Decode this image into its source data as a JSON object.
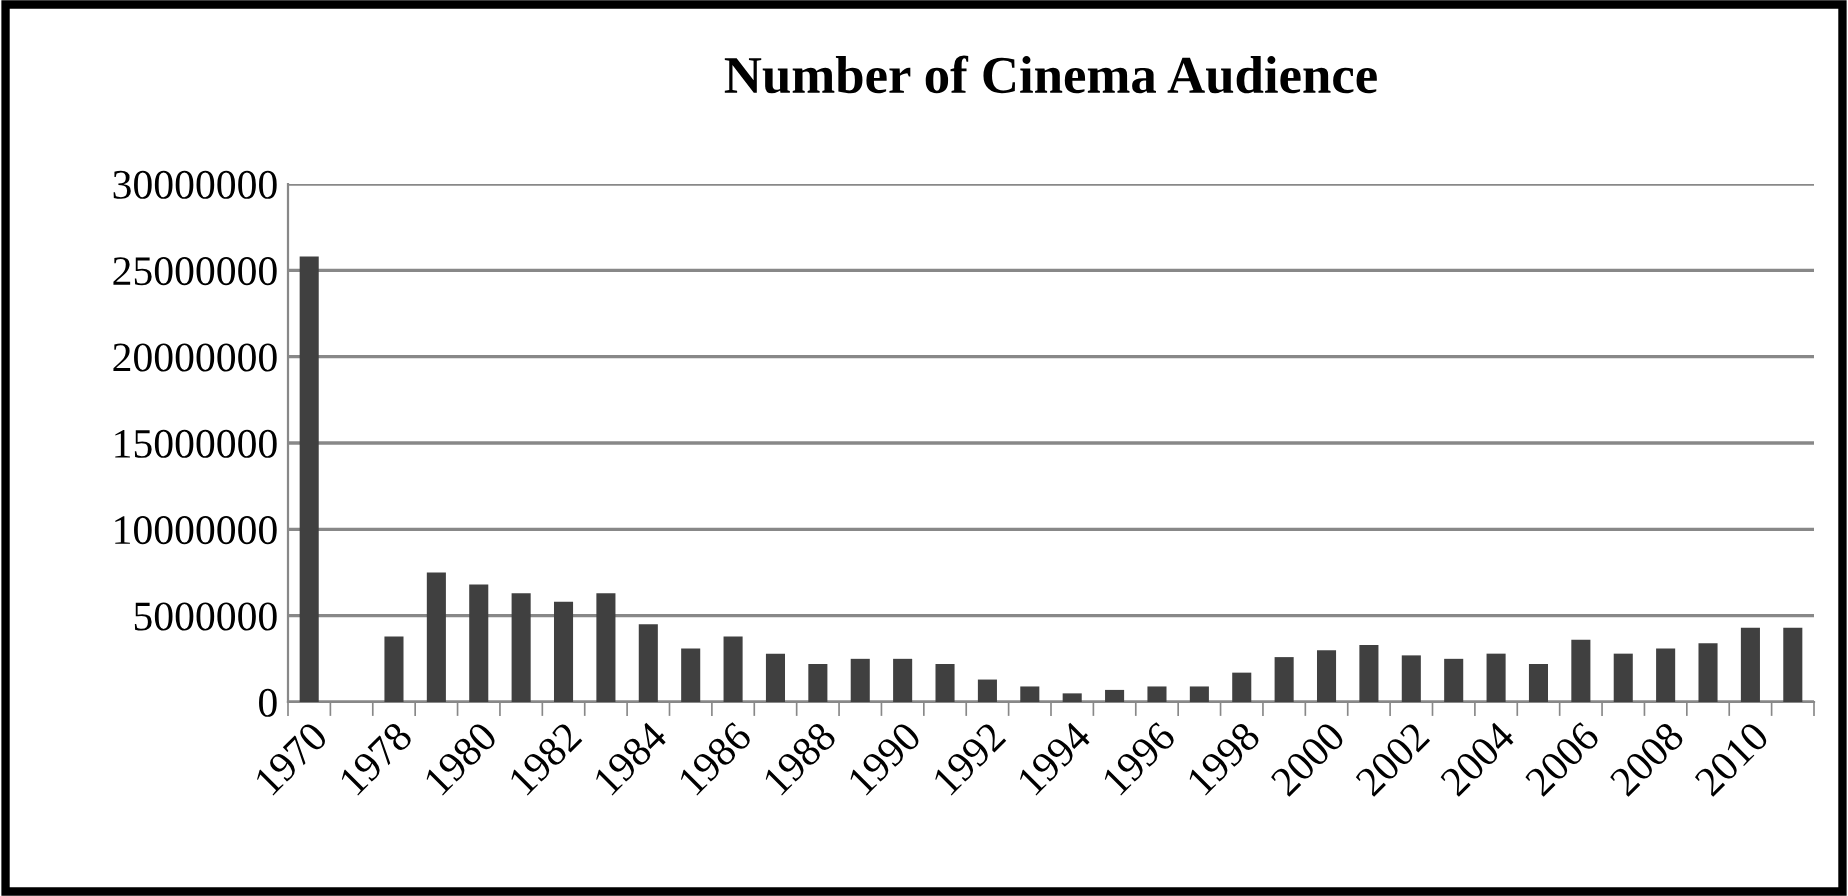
{
  "chart_data": {
    "type": "bar",
    "title": "Number of Cinema Audience",
    "categories": [
      "1970",
      null,
      "1978",
      null,
      "1980",
      null,
      "1982",
      null,
      "1984",
      null,
      "1986",
      null,
      "1988",
      null,
      "1990",
      null,
      "1992",
      null,
      "1994",
      null,
      "1996",
      null,
      "1998",
      null,
      "2000",
      null,
      "2002",
      null,
      "2004",
      null,
      "2006",
      null,
      "2008",
      null,
      "2010",
      null
    ],
    "values": [
      25800000,
      null,
      3800000,
      7500000,
      6800000,
      6300000,
      5800000,
      6300000,
      4500000,
      3100000,
      3800000,
      2800000,
      2200000,
      2500000,
      2500000,
      2200000,
      1300000,
      900000,
      500000,
      700000,
      900000,
      900000,
      1700000,
      2600000,
      3000000,
      3300000,
      2700000,
      2500000,
      2800000,
      2200000,
      3600000,
      2800000,
      3100000,
      3400000,
      4300000,
      4300000
    ],
    "color": "#404040",
    "ylim": [
      0,
      30000000
    ],
    "yticks": [
      0,
      5000000,
      10000000,
      15000000,
      20000000,
      25000000,
      30000000
    ],
    "grid": "y"
  }
}
